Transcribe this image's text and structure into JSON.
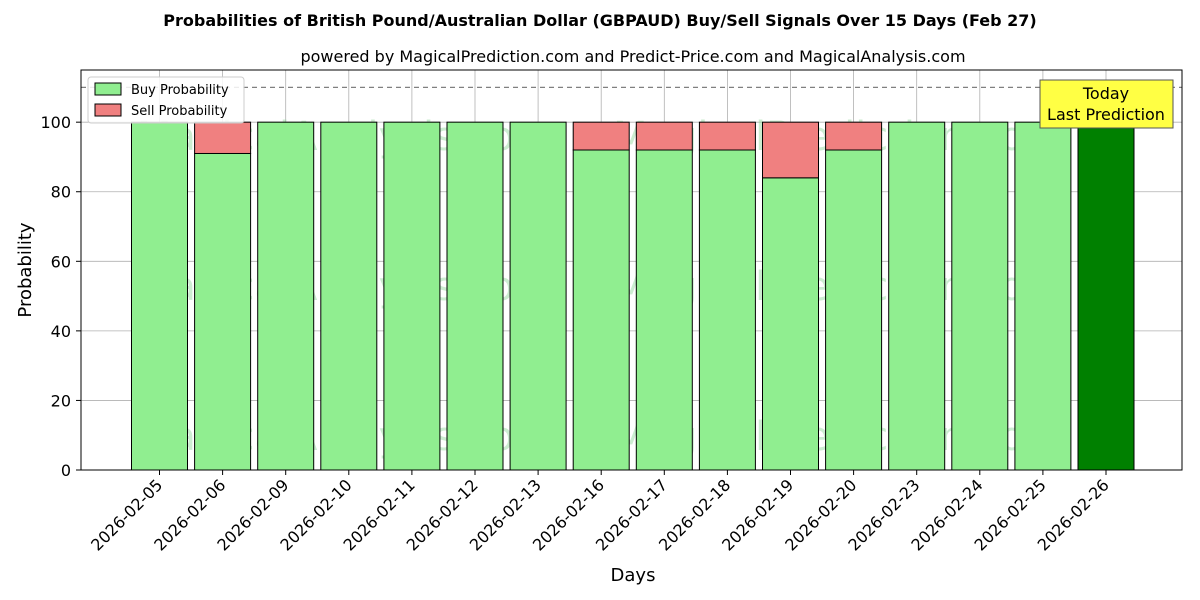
{
  "chart_data": {
    "type": "bar",
    "stacked": true,
    "title": "Probabilities of British Pound/Australian Dollar (GBPAUD) Buy/Sell Signals Over 15 Days (Feb 27)",
    "subtitle": "powered by MagicalPrediction.com and Predict-Price.com and MagicalAnalysis.com",
    "xlabel": "Days",
    "ylabel": "Probability",
    "ylim": [
      0,
      115
    ],
    "yticks": [
      0,
      20,
      40,
      60,
      80,
      100
    ],
    "reference_line": 110,
    "grid": true,
    "legend_position": "top-left",
    "categories": [
      "2026-02-05",
      "2026-02-06",
      "2026-02-09",
      "2026-02-10",
      "2026-02-11",
      "2026-02-12",
      "2026-02-13",
      "2026-02-16",
      "2026-02-17",
      "2026-02-18",
      "2026-02-19",
      "2026-02-20",
      "2026-02-23",
      "2026-02-24",
      "2026-02-25",
      "2026-02-26"
    ],
    "series": [
      {
        "name": "Buy Probability",
        "color": "#90ee90",
        "values": [
          100,
          91,
          100,
          100,
          100,
          100,
          100,
          92,
          92,
          92,
          84,
          92,
          100,
          100,
          100,
          100
        ]
      },
      {
        "name": "Sell Probability",
        "color": "#f08080",
        "values": [
          0,
          9,
          0,
          0,
          0,
          0,
          0,
          8,
          8,
          8,
          16,
          8,
          0,
          0,
          0,
          0
        ]
      }
    ],
    "highlight": {
      "index": 15,
      "color": "#008000"
    },
    "annotation": {
      "line1": "Today",
      "line2": "Last Prediction",
      "color": "#ffff44"
    },
    "watermarks": [
      "MagicalAnalysis.com",
      "MagicalPrediction.com"
    ]
  }
}
